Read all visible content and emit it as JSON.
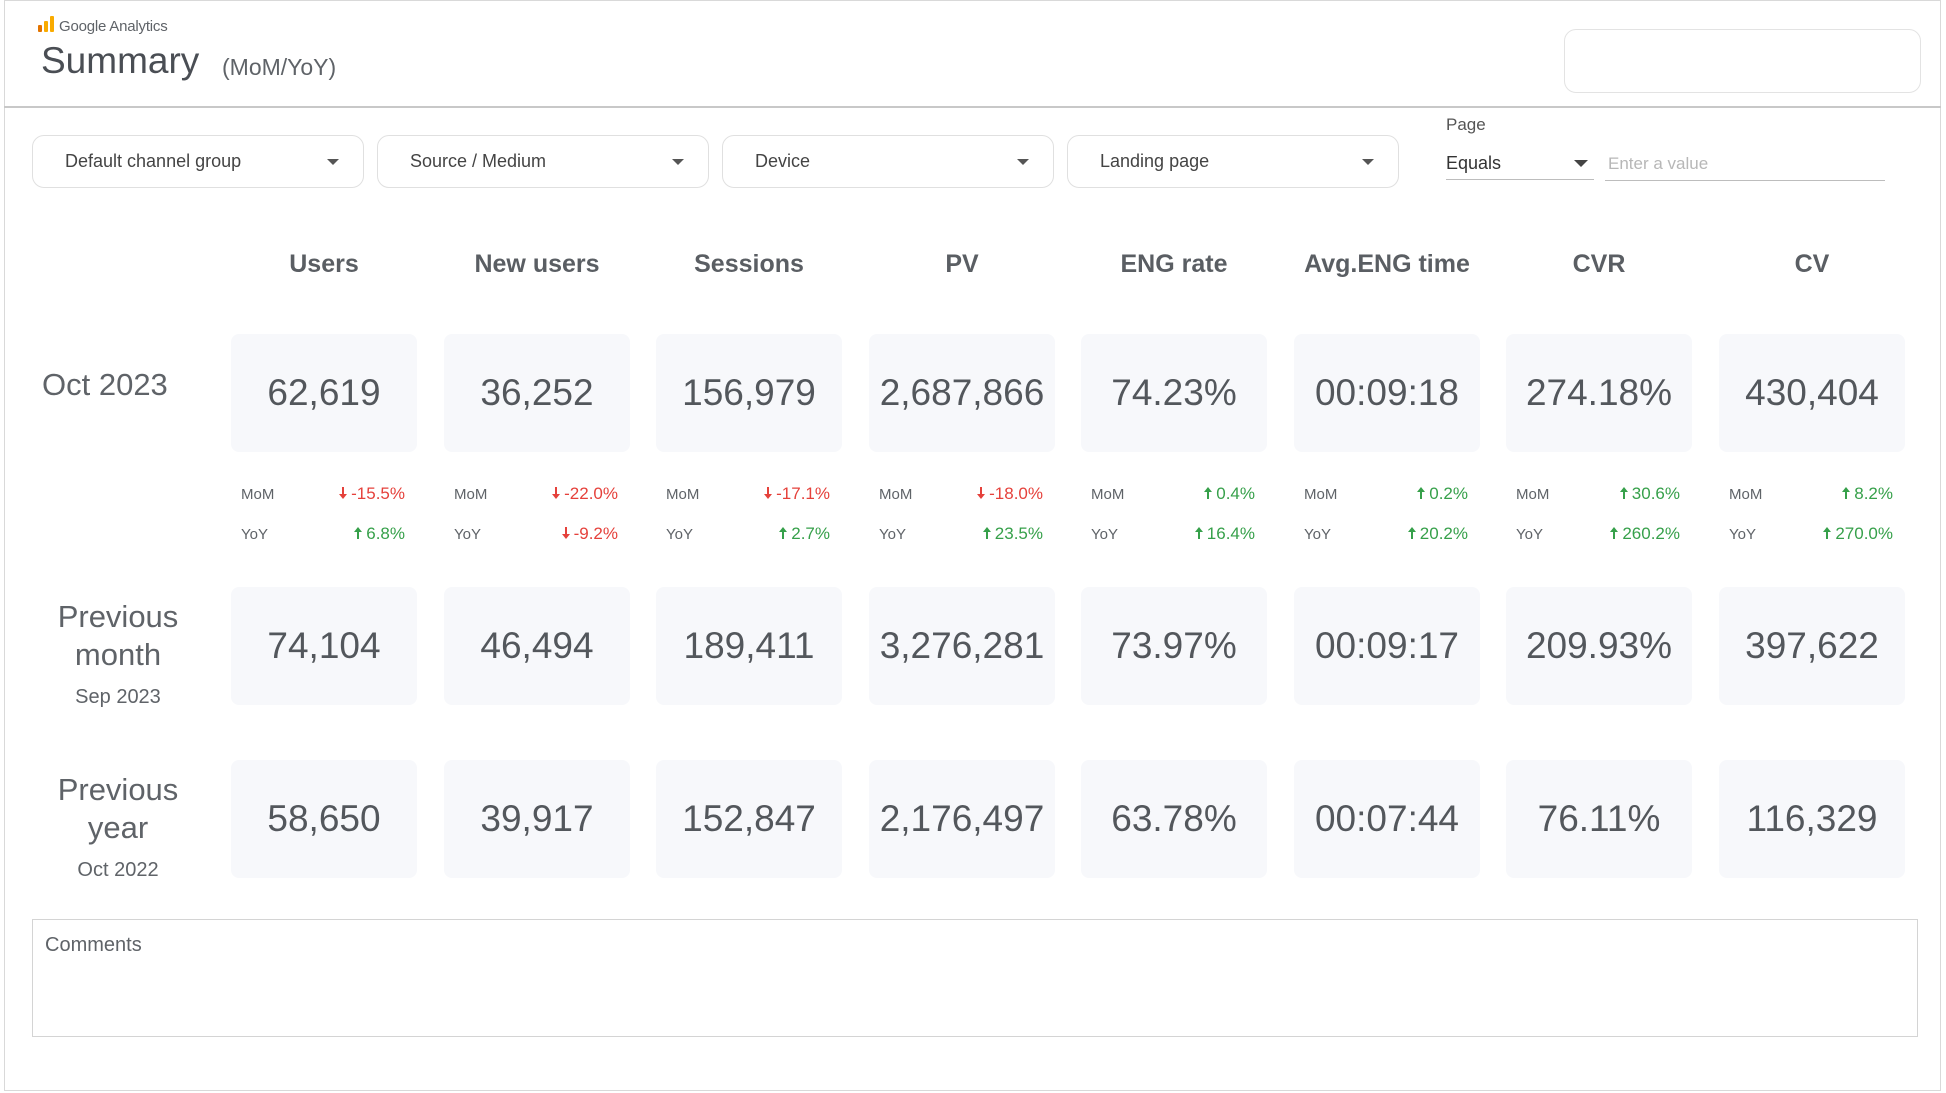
{
  "header": {
    "brand": "Google Analytics",
    "title": "Summary",
    "subtitle": "(MoM/YoY)"
  },
  "filters": [
    {
      "label": "Default channel group"
    },
    {
      "label": "Source / Medium"
    },
    {
      "label": "Device"
    },
    {
      "label": "Landing page"
    }
  ],
  "page_filter": {
    "label": "Page",
    "operator": "Equals",
    "placeholder": "Enter a value",
    "value": ""
  },
  "columns": [
    "Users",
    "New users",
    "Sessions",
    "PV",
    "ENG rate",
    "Avg.ENG time",
    "CVR",
    "CV"
  ],
  "rows": {
    "current": {
      "label": "Oct 2023",
      "values": [
        "62,619",
        "36,252",
        "156,979",
        "2,687,866",
        "74.23%",
        "00:09:18",
        "274.18%",
        "430,404"
      ]
    },
    "previous_month": {
      "label": "Previous month",
      "sub": "Sep 2023",
      "values": [
        "74,104",
        "46,494",
        "189,411",
        "3,276,281",
        "73.97%",
        "00:09:17",
        "209.93%",
        "397,622"
      ]
    },
    "previous_year": {
      "label": "Previous year",
      "sub": "Oct 2022",
      "values": [
        "58,650",
        "39,917",
        "152,847",
        "2,176,497",
        "63.78%",
        "00:07:44",
        "76.11%",
        "116,329"
      ]
    }
  },
  "comparisons": {
    "mom_label": "MoM",
    "yoy_label": "YoY",
    "mom": [
      {
        "value": "-15.5%",
        "direction": "down"
      },
      {
        "value": "-22.0%",
        "direction": "down"
      },
      {
        "value": "-17.1%",
        "direction": "down"
      },
      {
        "value": "-18.0%",
        "direction": "down"
      },
      {
        "value": "0.4%",
        "direction": "up"
      },
      {
        "value": "0.2%",
        "direction": "up"
      },
      {
        "value": "30.6%",
        "direction": "up"
      },
      {
        "value": "8.2%",
        "direction": "up"
      }
    ],
    "yoy": [
      {
        "value": "6.8%",
        "direction": "up"
      },
      {
        "value": "-9.2%",
        "direction": "down"
      },
      {
        "value": "2.7%",
        "direction": "up"
      },
      {
        "value": "23.5%",
        "direction": "up"
      },
      {
        "value": "16.4%",
        "direction": "up"
      },
      {
        "value": "20.2%",
        "direction": "up"
      },
      {
        "value": "260.2%",
        "direction": "up"
      },
      {
        "value": "270.0%",
        "direction": "up"
      }
    ]
  },
  "comments": {
    "label": "Comments"
  },
  "colors": {
    "up": "#36a04a",
    "down": "#e5413b",
    "card_bg": "#f7f8fb"
  }
}
